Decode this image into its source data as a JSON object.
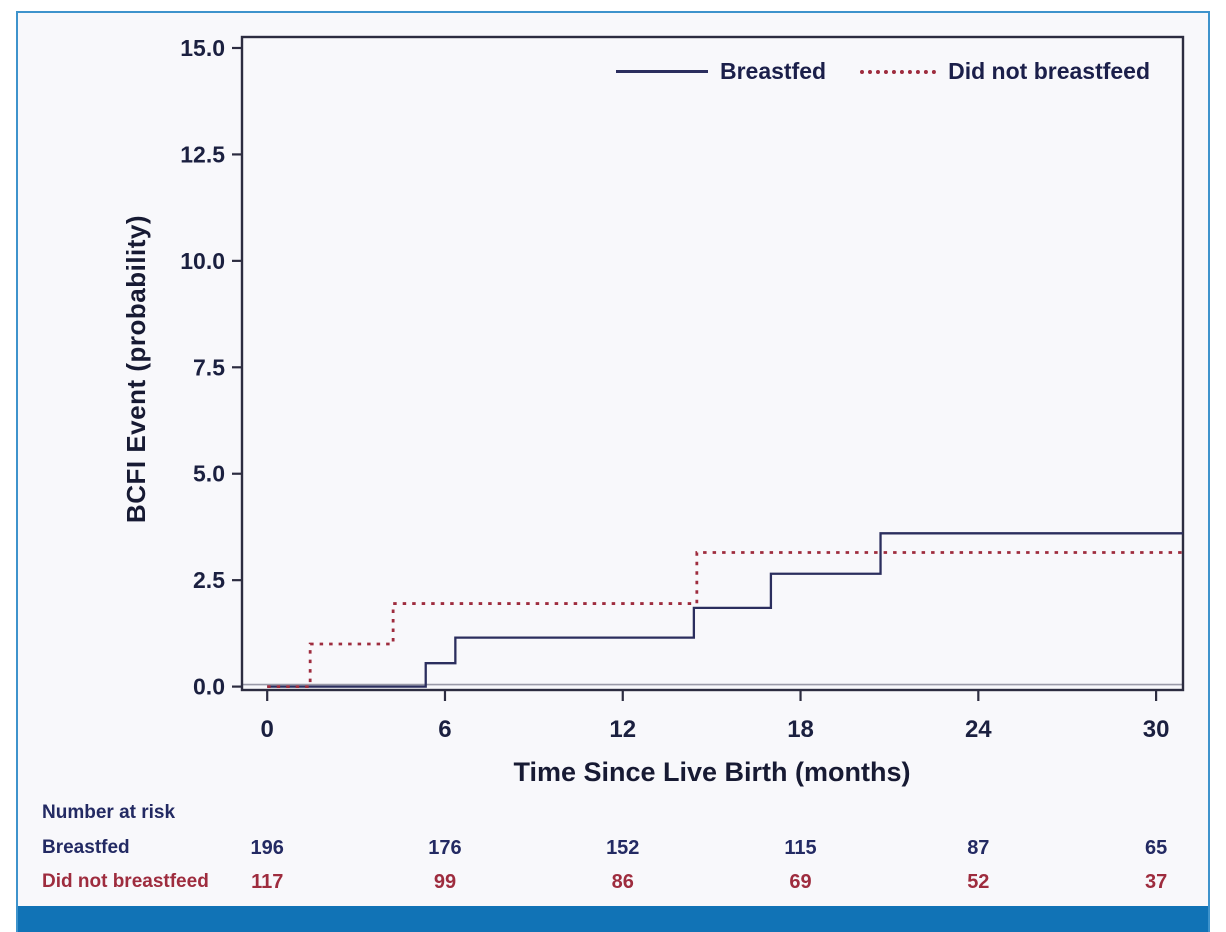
{
  "figure": {
    "background": "#f8f8fb",
    "accent_border_color": "#3e93cc",
    "bottom_bar_color": "#1173b6",
    "axis_frame_color": "#2c2c40",
    "axis_text_color": "#1b2040"
  },
  "chart_data": {
    "type": "line",
    "subtype": "step-cumulative-incidence",
    "title": "",
    "xlabel": "Time Since Live Birth (months)",
    "ylabel": "BCFI Event (probability)",
    "xlim": [
      -0.85,
      30.9
    ],
    "ylim": [
      0,
      15.35
    ],
    "x_ticks": [
      0,
      6,
      12,
      18,
      24,
      30
    ],
    "y_ticks": [
      0.0,
      2.5,
      5.0,
      7.5,
      10.0,
      12.5,
      15.0
    ],
    "y_tick_labels": [
      "0.0",
      "2.5",
      "5.0",
      "7.5",
      "10.0",
      "12.5",
      "15.0"
    ],
    "grid": false,
    "legend_position": "top-right-inside",
    "series": [
      {
        "name": "Breastfed",
        "color": "#2b2e5e",
        "style": "solid",
        "steps": [
          [
            0,
            0
          ],
          [
            5.35,
            0.55
          ],
          [
            6.35,
            1.15
          ],
          [
            14.4,
            1.85
          ],
          [
            17.0,
            2.65
          ],
          [
            20.7,
            3.6
          ]
        ],
        "extend_to": 30.9
      },
      {
        "name": "Did not breastfeed",
        "color": "#9e2c3e",
        "style": "dotted",
        "steps": [
          [
            0,
            0
          ],
          [
            1.45,
            1.0
          ],
          [
            4.25,
            1.95
          ],
          [
            14.5,
            3.15
          ]
        ],
        "extend_to": 30.9
      }
    ],
    "number_at_risk": {
      "title": "Number at risk",
      "times": [
        0,
        6,
        12,
        18,
        24,
        30
      ],
      "rows": [
        {
          "name": "Breastfed",
          "color": "#232a63",
          "values": [
            196,
            176,
            152,
            115,
            87,
            65
          ]
        },
        {
          "name": "Did not breastfeed",
          "color": "#9e2c3e",
          "values": [
            117,
            99,
            86,
            69,
            52,
            37
          ]
        }
      ]
    }
  }
}
